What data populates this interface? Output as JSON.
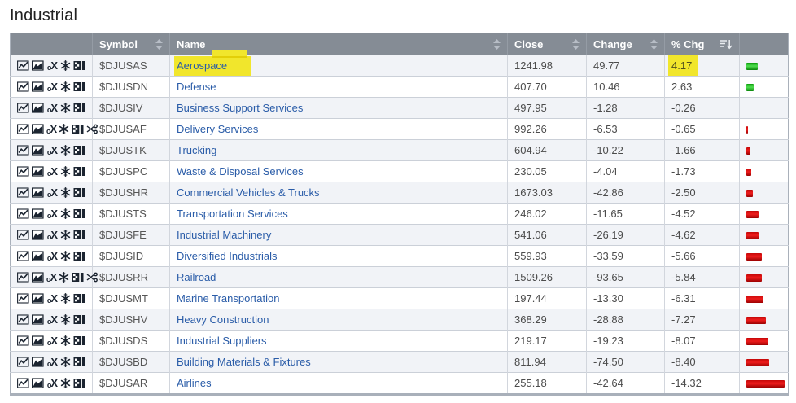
{
  "page_title": "Industrial",
  "table": {
    "columns": {
      "symbol": "Symbol",
      "name": "Name",
      "close": "Close",
      "change": "Change",
      "pct_chg": "% Chg"
    },
    "sort": {
      "active_column": "% Chg",
      "direction": "descending"
    },
    "tool_icons": [
      "line-chart",
      "area-chart",
      "point-and-figure",
      "asterisk",
      "candleglance"
    ],
    "extra_tool_icon": "scissors",
    "point_and_figure_glyph_small": "o",
    "point_and_figure_glyph_big": "X",
    "rows": [
      {
        "symbol": "$DJUSAS",
        "name": "Aerospace",
        "close": "1241.98",
        "change": "49.77",
        "pct_chg": "4.17",
        "pct_value": 4.17,
        "highlight_name": true,
        "highlight_pct": true,
        "extra_icon": false
      },
      {
        "symbol": "$DJUSDN",
        "name": "Defense",
        "close": "407.70",
        "change": "10.46",
        "pct_chg": "2.63",
        "pct_value": 2.63,
        "highlight_name": false,
        "highlight_pct": false,
        "extra_icon": false
      },
      {
        "symbol": "$DJUSIV",
        "name": "Business Support Services",
        "close": "497.95",
        "change": "-1.28",
        "pct_chg": "-0.26",
        "pct_value": -0.26,
        "highlight_name": false,
        "highlight_pct": false,
        "extra_icon": false
      },
      {
        "symbol": "$DJUSAF",
        "name": "Delivery Services",
        "close": "992.26",
        "change": "-6.53",
        "pct_chg": "-0.65",
        "pct_value": -0.65,
        "highlight_name": false,
        "highlight_pct": false,
        "extra_icon": true
      },
      {
        "symbol": "$DJUSTK",
        "name": "Trucking",
        "close": "604.94",
        "change": "-10.22",
        "pct_chg": "-1.66",
        "pct_value": -1.66,
        "highlight_name": false,
        "highlight_pct": false,
        "extra_icon": false
      },
      {
        "symbol": "$DJUSPC",
        "name": "Waste & Disposal Services",
        "close": "230.05",
        "change": "-4.04",
        "pct_chg": "-1.73",
        "pct_value": -1.73,
        "highlight_name": false,
        "highlight_pct": false,
        "extra_icon": false
      },
      {
        "symbol": "$DJUSHR",
        "name": "Commercial Vehicles & Trucks",
        "close": "1673.03",
        "change": "-42.86",
        "pct_chg": "-2.50",
        "pct_value": -2.5,
        "highlight_name": false,
        "highlight_pct": false,
        "extra_icon": false
      },
      {
        "symbol": "$DJUSTS",
        "name": "Transportation Services",
        "close": "246.02",
        "change": "-11.65",
        "pct_chg": "-4.52",
        "pct_value": -4.52,
        "highlight_name": false,
        "highlight_pct": false,
        "extra_icon": false
      },
      {
        "symbol": "$DJUSFE",
        "name": "Industrial Machinery",
        "close": "541.06",
        "change": "-26.19",
        "pct_chg": "-4.62",
        "pct_value": -4.62,
        "highlight_name": false,
        "highlight_pct": false,
        "extra_icon": false
      },
      {
        "symbol": "$DJUSID",
        "name": "Diversified Industrials",
        "close": "559.93",
        "change": "-33.59",
        "pct_chg": "-5.66",
        "pct_value": -5.66,
        "highlight_name": false,
        "highlight_pct": false,
        "extra_icon": false
      },
      {
        "symbol": "$DJUSRR",
        "name": "Railroad",
        "close": "1509.26",
        "change": "-93.65",
        "pct_chg": "-5.84",
        "pct_value": -5.84,
        "highlight_name": false,
        "highlight_pct": false,
        "extra_icon": true
      },
      {
        "symbol": "$DJUSMT",
        "name": "Marine Transportation",
        "close": "197.44",
        "change": "-13.30",
        "pct_chg": "-6.31",
        "pct_value": -6.31,
        "highlight_name": false,
        "highlight_pct": false,
        "extra_icon": false
      },
      {
        "symbol": "$DJUSHV",
        "name": "Heavy Construction",
        "close": "368.29",
        "change": "-28.88",
        "pct_chg": "-7.27",
        "pct_value": -7.27,
        "highlight_name": false,
        "highlight_pct": false,
        "extra_icon": false
      },
      {
        "symbol": "$DJUSDS",
        "name": "Industrial Suppliers",
        "close": "219.17",
        "change": "-19.23",
        "pct_chg": "-8.07",
        "pct_value": -8.07,
        "highlight_name": false,
        "highlight_pct": false,
        "extra_icon": false
      },
      {
        "symbol": "$DJUSBD",
        "name": "Building Materials & Fixtures",
        "close": "811.94",
        "change": "-74.50",
        "pct_chg": "-8.40",
        "pct_value": -8.4,
        "highlight_name": false,
        "highlight_pct": false,
        "extra_icon": false
      },
      {
        "symbol": "$DJUSAR",
        "name": "Airlines",
        "close": "255.18",
        "change": "-42.64",
        "pct_chg": "-14.32",
        "pct_value": -14.32,
        "highlight_name": false,
        "highlight_pct": false,
        "extra_icon": false
      }
    ],
    "bar_colors": {
      "positive": "#17b517",
      "negative": "#cc0606"
    },
    "highlight_color": "#f1e62c"
  }
}
